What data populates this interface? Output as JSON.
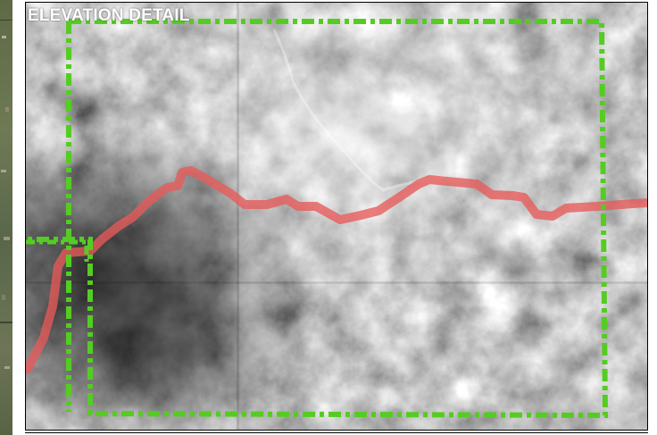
{
  "map": {
    "title": "ELEVATION DETAIL",
    "colors": {
      "route": "#e85a5a",
      "boundary": "#55cc22",
      "frame": "#000000",
      "title_text": "#ffffff"
    },
    "layers": [
      "shaded-relief-elevation",
      "route-line",
      "study-area-boundary",
      "satellite-inset-strip"
    ]
  }
}
